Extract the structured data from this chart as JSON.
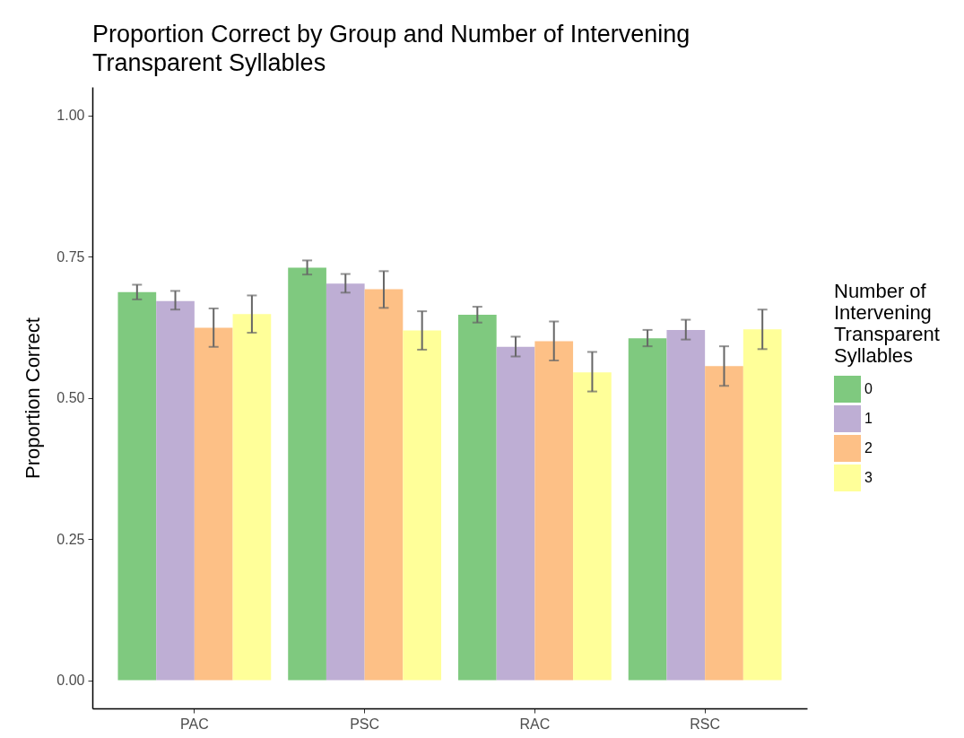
{
  "chart_data": {
    "type": "bar",
    "title": "Proportion Correct by Group and Number of Intervening Transparent Syllables",
    "ylabel": "Proportion Correct",
    "legend_title": "Number of Intervening Transparent Syllables",
    "categories": [
      "PAC",
      "PSC",
      "RAC",
      "RSC"
    ],
    "series": [
      {
        "name": "0",
        "color": "#7fc97f",
        "values": [
          0.687,
          0.73,
          0.647,
          0.605
        ],
        "errors": [
          [
            0.674,
            0.7
          ],
          [
            0.718,
            0.743
          ],
          [
            0.633,
            0.661
          ],
          [
            0.591,
            0.62
          ]
        ]
      },
      {
        "name": "1",
        "color": "#beaed4",
        "values": [
          0.671,
          0.702,
          0.59,
          0.62
        ],
        "errors": [
          [
            0.656,
            0.689
          ],
          [
            0.686,
            0.719
          ],
          [
            0.573,
            0.608
          ],
          [
            0.603,
            0.638
          ]
        ]
      },
      {
        "name": "2",
        "color": "#fdc086",
        "values": [
          0.624,
          0.692,
          0.6,
          0.556
        ],
        "errors": [
          [
            0.59,
            0.658
          ],
          [
            0.659,
            0.724
          ],
          [
            0.566,
            0.635
          ],
          [
            0.521,
            0.591
          ]
        ]
      },
      {
        "name": "3",
        "color": "#ffff99",
        "values": [
          0.648,
          0.619,
          0.545,
          0.621
        ],
        "errors": [
          [
            0.615,
            0.681
          ],
          [
            0.585,
            0.653
          ],
          [
            0.511,
            0.581
          ],
          [
            0.586,
            0.656
          ]
        ]
      }
    ],
    "ylim": [
      -0.05,
      1.05
    ],
    "yticks": [
      {
        "value": 0,
        "label": "0.00"
      },
      {
        "value": 0.25,
        "label": "0.25"
      },
      {
        "value": 0.5,
        "label": "0.50"
      },
      {
        "value": 0.75,
        "label": "0.75"
      },
      {
        "value": 1,
        "label": "1.00"
      }
    ],
    "grid": false,
    "legend": "right"
  }
}
